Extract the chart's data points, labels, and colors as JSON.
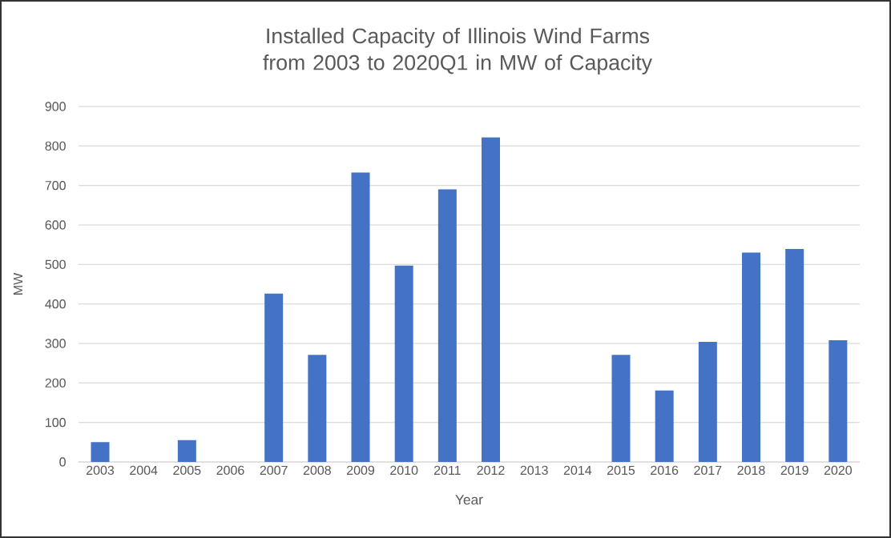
{
  "chart_data": {
    "type": "bar",
    "title": "Installed Capacity of Illinois Wind Farms from 2003 to 2020Q1 in MW of Capacity",
    "xlabel": "Year",
    "ylabel": "MW",
    "categories": [
      "2003",
      "2004",
      "2005",
      "2006",
      "2007",
      "2008",
      "2009",
      "2010",
      "2011",
      "2012",
      "2013",
      "2014",
      "2015",
      "2016",
      "2017",
      "2018",
      "2019",
      "2020"
    ],
    "values": [
      50,
      null,
      55,
      null,
      426,
      271,
      733,
      497,
      690,
      822,
      null,
      null,
      271,
      181,
      304,
      530,
      539,
      308
    ],
    "color": "#4472c4",
    "ylim": [
      0,
      900
    ],
    "yticks": [
      0,
      100,
      200,
      300,
      400,
      500,
      600,
      700,
      800,
      900
    ],
    "grid": "y"
  }
}
